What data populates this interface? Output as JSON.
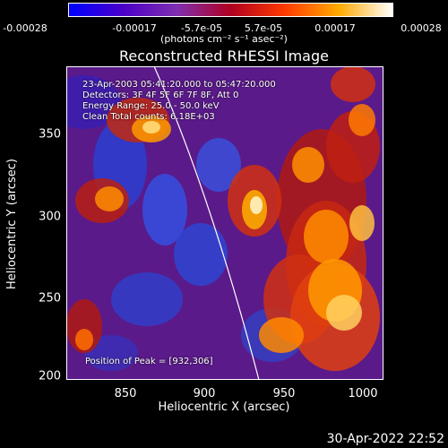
{
  "colorbar": {
    "ticks": [
      "-0.00028",
      "-0.00017",
      "-5.7e-05",
      "5.7e-05",
      "0.00017",
      "0.00028"
    ],
    "units": "(photons cm⁻² s⁻¹ asec⁻²)",
    "colors": [
      "#0000ff",
      "#4b00c8",
      "#7f2fb0",
      "#b00020",
      "#ff3a00",
      "#ffaa00",
      "#ffffff"
    ]
  },
  "title": "Reconstructed RHESSI Image",
  "info": {
    "line1": "23-Apr-2003 05:41:20.000 to 05:47:20.000",
    "line2": "Detectors: 3F 4F 5F 6F 7F 8F, Att 0",
    "line3": "Energy Range: 25.0 - 50.0 keV",
    "line4": "Clean     Total counts: 6.18E+03",
    "peak": "Position of Peak = [932,306]"
  },
  "axes": {
    "xlabel": "Heliocentric X (arcsec)",
    "ylabel": "Heliocentric Y (arcsec)",
    "xticks": [
      "850",
      "900",
      "950",
      "1000"
    ],
    "yticks": [
      "350",
      "300",
      "250",
      "200"
    ]
  },
  "timestamp": "30-Apr-2022 22:52"
}
